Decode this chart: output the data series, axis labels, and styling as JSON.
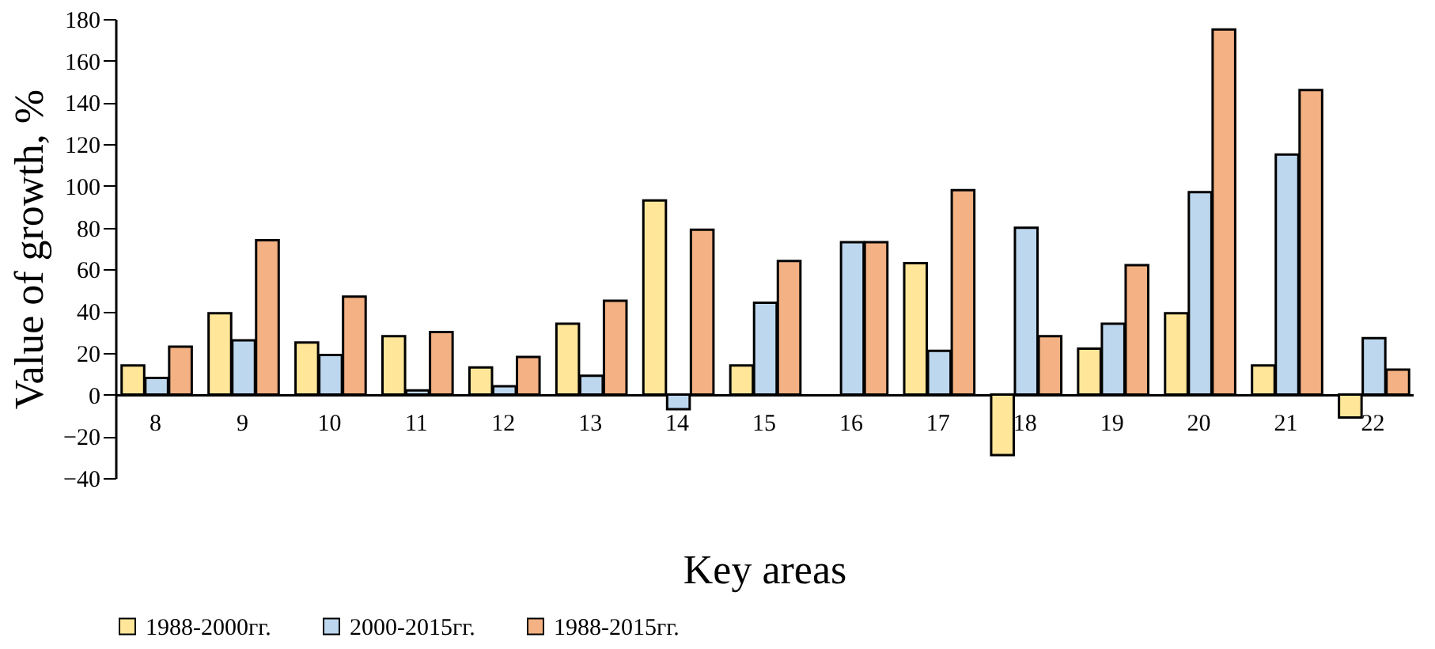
{
  "chart_data": {
    "type": "bar",
    "xlabel": "Key areas",
    "ylabel": "Value of growth, %",
    "categories": [
      "8",
      "9",
      "10",
      "11",
      "12",
      "13",
      "14",
      "15",
      "16",
      "17",
      "18",
      "19",
      "20",
      "21",
      "22"
    ],
    "series": [
      {
        "name": "1988-2000гг.",
        "color": "#ffe699",
        "values": [
          14,
          39,
          25,
          28,
          13,
          34,
          93,
          14,
          null,
          63,
          -29,
          22,
          39,
          14,
          -11
        ]
      },
      {
        "name": "2000-2015гг.",
        "color": "#bdd7ee",
        "values": [
          8,
          26,
          19,
          2,
          4,
          9,
          -7,
          44,
          73,
          21,
          80,
          34,
          97,
          115,
          27
        ]
      },
      {
        "name": "1988-2015гг.",
        "color": "#f4b183",
        "values": [
          23,
          74,
          47,
          30,
          18,
          45,
          79,
          64,
          73,
          98,
          28,
          62,
          175,
          146,
          12
        ]
      }
    ],
    "ylim": [
      -40,
      180
    ],
    "yticks": [
      -40,
      -20,
      0,
      20,
      40,
      60,
      80,
      100,
      120,
      140,
      160,
      180
    ],
    "grid": false,
    "legend": "bottom"
  }
}
